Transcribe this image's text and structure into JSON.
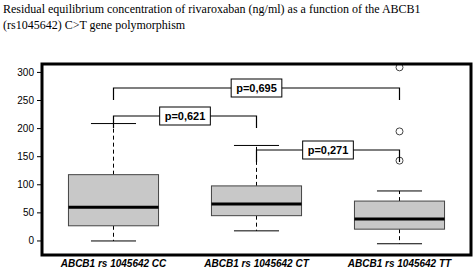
{
  "chart_data": {
    "type": "box",
    "title": "Residual equilibrium concentration of rivaroxaban (ng/ml) as a function of the ABCB1 (rs1045642) C>T gene polymorphism",
    "categories": [
      "ABCB1 rs 1045642 CC",
      "ABCB1 rs 1045642 CT",
      "ABCB1 rs 1045642 TT"
    ],
    "boxes": [
      {
        "whisker_low": 0,
        "q1": 27,
        "median": 60,
        "q3": 118,
        "whisker_high": 209,
        "outliers": []
      },
      {
        "whisker_low": 18,
        "q1": 45,
        "median": 66,
        "q3": 98,
        "whisker_high": 170,
        "outliers": []
      },
      {
        "whisker_low": -5,
        "q1": 21,
        "median": 39,
        "q3": 71,
        "whisker_high": 89,
        "outliers": [
          309,
          195,
          143
        ]
      }
    ],
    "color": "#c8c8c8",
    "ylim": [
      -25,
      315
    ],
    "yticks": [
      0,
      50,
      100,
      150,
      200,
      250,
      300
    ],
    "grid": false,
    "comparisons": [
      {
        "text": "p=0,695",
        "between": [
          0,
          2
        ]
      },
      {
        "text": "p=0,621",
        "between": [
          0,
          1
        ]
      },
      {
        "text": "p=0,271",
        "between": [
          1,
          2
        ]
      }
    ]
  }
}
